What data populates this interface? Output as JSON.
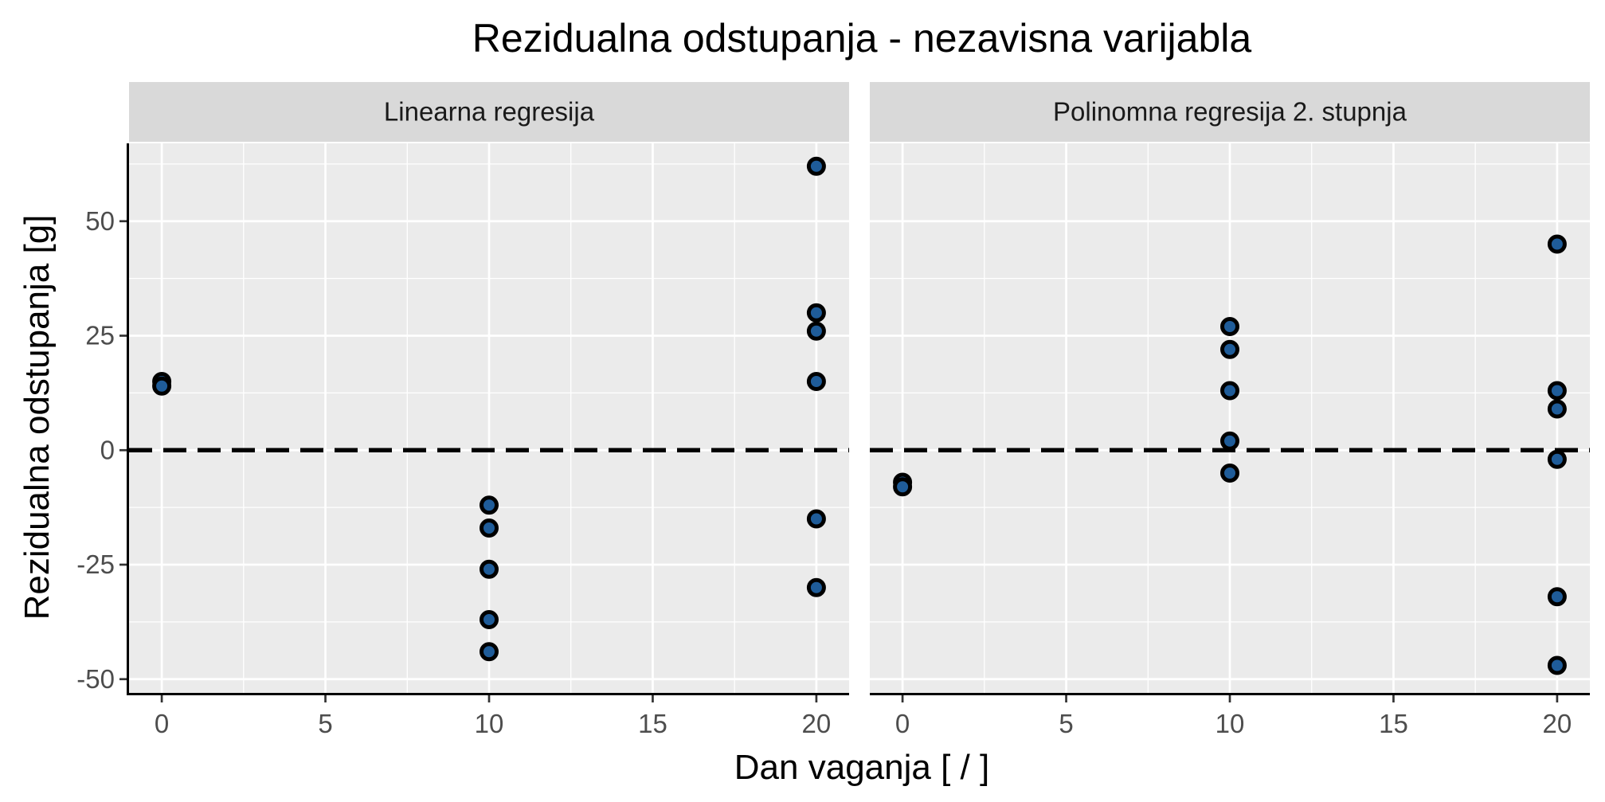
{
  "chart_data": {
    "type": "scatter",
    "title": "Rezidualna odstupanja - nezavisna varijabla",
    "xlabel": "Dan vaganja [ / ]",
    "ylabel": "Rezidualna odstupanja [g]",
    "xlim": [
      -1,
      21
    ],
    "ylim": [
      -53,
      67
    ],
    "x_ticks": [
      0,
      5,
      10,
      15,
      20
    ],
    "x_tick_labels": [
      "0",
      "5",
      "10",
      "15",
      "20"
    ],
    "y_ticks": [
      -50,
      -25,
      0,
      25,
      50
    ],
    "y_tick_labels": [
      "-50",
      "-25",
      "0",
      "25",
      "50"
    ],
    "grid": true,
    "reference_line": {
      "y": 0,
      "style": "dashed"
    },
    "colors": {
      "point_fill": "#1f5c99",
      "point_stroke": "#000000",
      "panel_bg": "#ebebeb",
      "strip_bg": "#d9d9d9",
      "grid": "#ffffff"
    },
    "panels": [
      {
        "label": "Linearna regresija",
        "points": [
          {
            "x": 0,
            "y": 15
          },
          {
            "x": 0,
            "y": 14
          },
          {
            "x": 10,
            "y": -12
          },
          {
            "x": 10,
            "y": -17
          },
          {
            "x": 10,
            "y": -26
          },
          {
            "x": 10,
            "y": -37
          },
          {
            "x": 10,
            "y": -44
          },
          {
            "x": 20,
            "y": 62
          },
          {
            "x": 20,
            "y": 30
          },
          {
            "x": 20,
            "y": 26
          },
          {
            "x": 20,
            "y": 15
          },
          {
            "x": 20,
            "y": -15
          },
          {
            "x": 20,
            "y": -30
          }
        ]
      },
      {
        "label": "Polinomna regresija 2. stupnja",
        "points": [
          {
            "x": 0,
            "y": -7
          },
          {
            "x": 0,
            "y": -8
          },
          {
            "x": 10,
            "y": 27
          },
          {
            "x": 10,
            "y": 22
          },
          {
            "x": 10,
            "y": 13
          },
          {
            "x": 10,
            "y": 2
          },
          {
            "x": 10,
            "y": -5
          },
          {
            "x": 20,
            "y": 45
          },
          {
            "x": 20,
            "y": 13
          },
          {
            "x": 20,
            "y": 9
          },
          {
            "x": 20,
            "y": -2
          },
          {
            "x": 20,
            "y": -32
          },
          {
            "x": 20,
            "y": -47
          }
        ]
      }
    ]
  }
}
